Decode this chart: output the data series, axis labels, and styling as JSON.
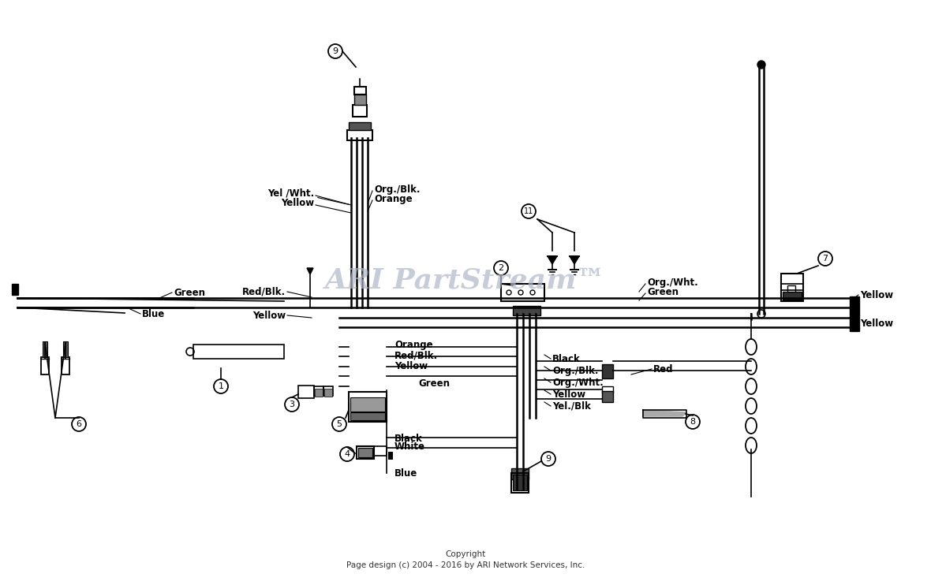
{
  "background_color": "#ffffff",
  "watermark": "ARI PartStream™",
  "copyright": "Copyright\nPage design (c) 2004 - 2016 by ARI Network Services, Inc.",
  "wire_color": "#000000",
  "watermark_color": "#b0b8c8",
  "figsize": [
    11.8,
    7.42
  ],
  "dpi": 100,
  "labels": {
    "green_left": "Green",
    "blue_left": "Blue",
    "red_blk": "Red/Blk.",
    "yellow_center": "Yellow",
    "yel_wht": "Yel /Wht.",
    "yellow2": "Yellow",
    "org_blk": "Org./Blk.",
    "orange_lbl": "Orange",
    "orange2": "Orange",
    "red_blk2": "Red/Blk.",
    "yellow3": "Yellow",
    "green2": "Green",
    "black1": "Black",
    "white1": "White",
    "blue2": "Blue",
    "org_wht": "Org./Wht.",
    "green3": "Green",
    "black2": "Black",
    "org_blk2": "Org./Blk.",
    "org_wht2": "Org./Wht.",
    "yellow4": "Yellow",
    "yel_blk": "Yel./Blk",
    "red1": "Red",
    "yellow5": "Yellow",
    "yellow6": "Yellow"
  }
}
